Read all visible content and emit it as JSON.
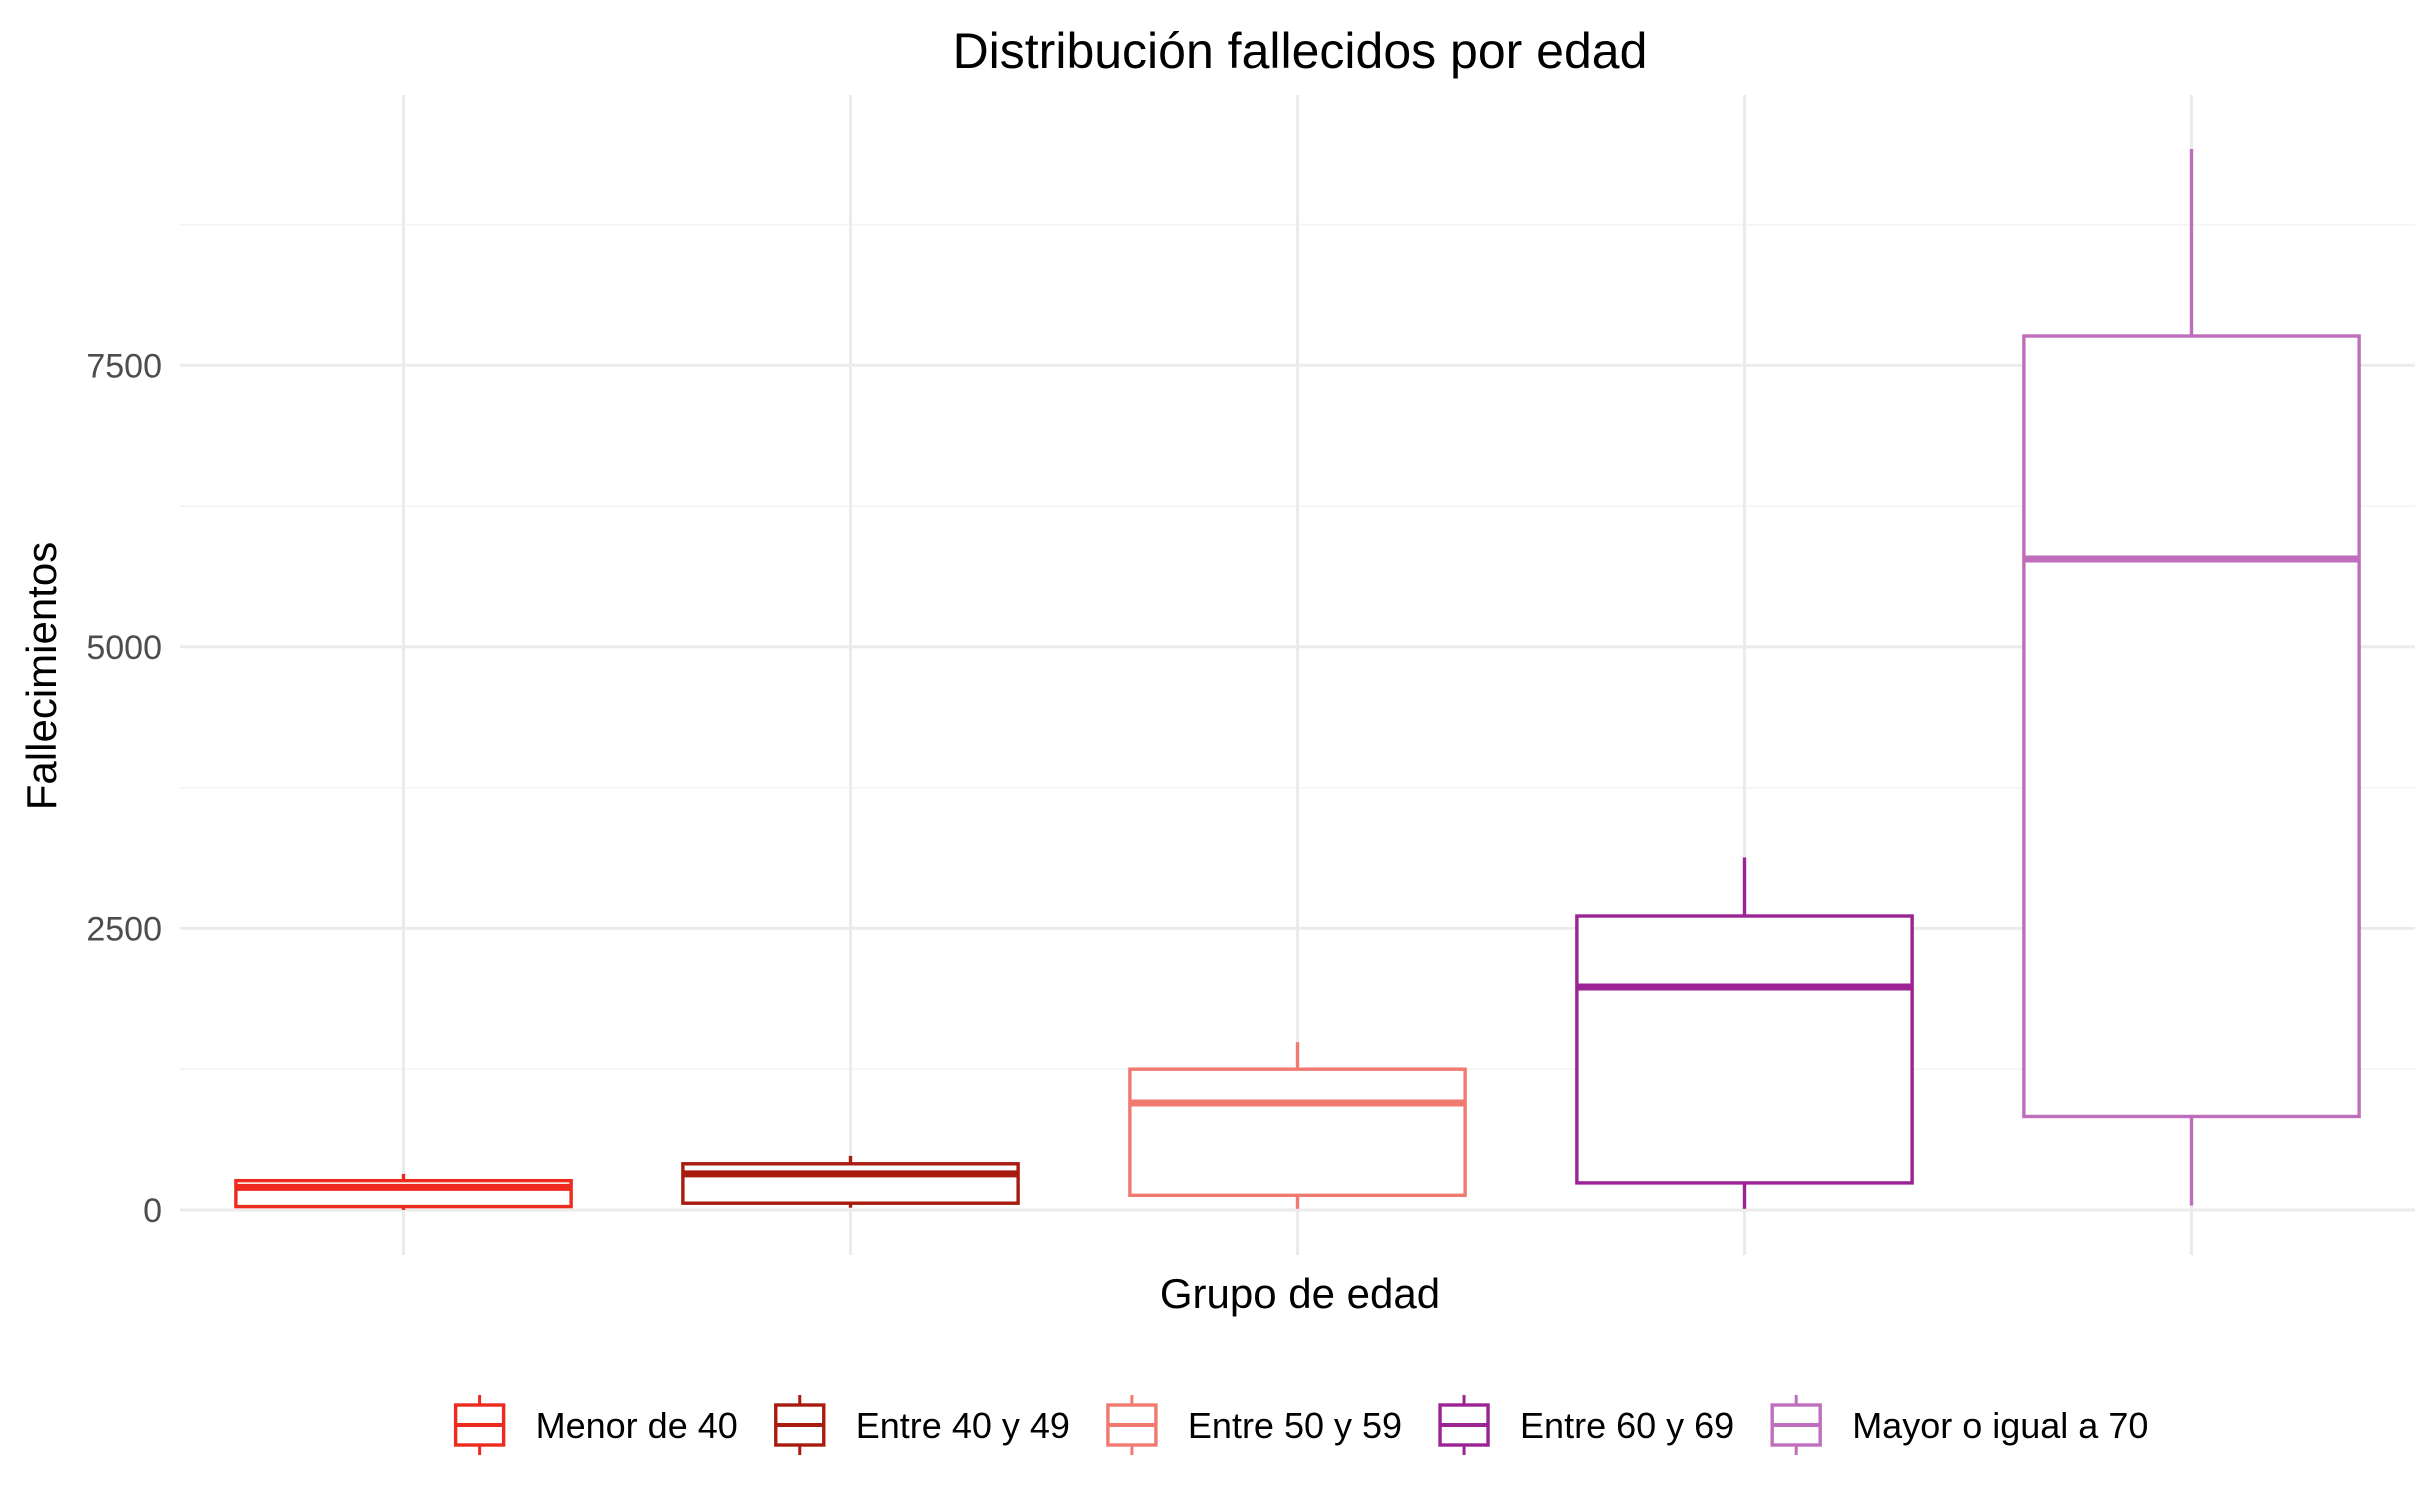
{
  "chart_data": {
    "type": "boxplot",
    "title": "Distribución fallecidos por edad",
    "xlabel": "Grupo de edad",
    "ylabel": "Fallecimientos",
    "ylim": [
      -400,
      9900
    ],
    "yticks": [
      0,
      2500,
      5000,
      7500
    ],
    "grid": true,
    "x_tick_labels_shown": false,
    "legend": {
      "position": "bottom"
    },
    "series": [
      {
        "name": "Menor de 40",
        "color": "#ee2a1f",
        "min": 0,
        "q1": 30,
        "median": 200,
        "q3": 260,
        "max": 320
      },
      {
        "name": "Entre 40 y 49",
        "color": "#a81c10",
        "min": 20,
        "q1": 60,
        "median": 320,
        "q3": 410,
        "max": 480
      },
      {
        "name": "Entre 50 y 59",
        "color": "#f07a70",
        "min": 10,
        "q1": 130,
        "median": 950,
        "q3": 1250,
        "max": 1490
      },
      {
        "name": "Entre 60 y 69",
        "color": "#9b2393",
        "min": 10,
        "q1": 240,
        "median": 1980,
        "q3": 2610,
        "max": 3130
      },
      {
        "name": "Mayor o igual a 70",
        "color": "#bf6ebc",
        "min": 40,
        "q1": 830,
        "median": 5780,
        "q3": 7760,
        "max": 9420
      }
    ]
  }
}
